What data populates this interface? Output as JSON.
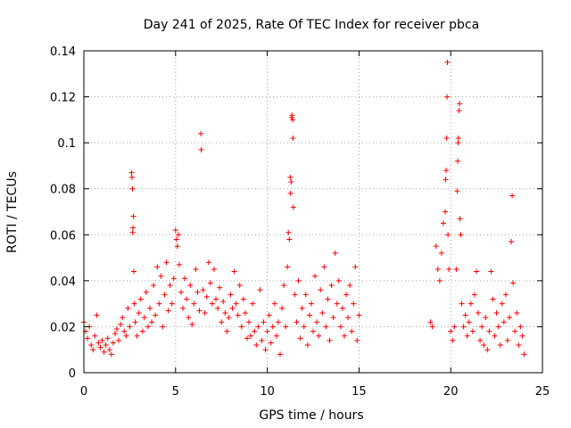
{
  "chart_data": {
    "type": "scatter",
    "title": "Day 241 of 2025, Rate Of TEC Index for receiver pbca",
    "xlabel": "GPS time / hours",
    "ylabel": "ROTI / TECUs",
    "xlim": [
      0,
      25
    ],
    "ylim": [
      0,
      0.14
    ],
    "xticks": [
      0,
      5,
      10,
      15,
      20,
      25
    ],
    "xtick_labels": [
      "0",
      "5",
      "10",
      "15",
      "20",
      "25"
    ],
    "yticks": [
      0,
      0.02,
      0.04,
      0.06,
      0.08,
      0.1,
      0.12,
      0.14
    ],
    "ytick_labels": [
      "0",
      "0.02",
      "0.04",
      "0.06",
      "0.08",
      "0.1",
      "0.12",
      "0.14"
    ],
    "grid": true,
    "marker": "plus",
    "color": "#ff0000",
    "series": [
      {
        "name": "ROTI",
        "points": [
          [
            0.0,
            0.022
          ],
          [
            0.1,
            0.018
          ],
          [
            0.2,
            0.015
          ],
          [
            0.3,
            0.02
          ],
          [
            0.4,
            0.012
          ],
          [
            0.5,
            0.01
          ],
          [
            0.6,
            0.016
          ],
          [
            0.7,
            0.025
          ],
          [
            0.8,
            0.013
          ],
          [
            0.9,
            0.011
          ],
          [
            1.0,
            0.014
          ],
          [
            1.1,
            0.009
          ],
          [
            1.2,
            0.012
          ],
          [
            1.3,
            0.015
          ],
          [
            1.4,
            0.01
          ],
          [
            1.5,
            0.008
          ],
          [
            1.6,
            0.013
          ],
          [
            1.7,
            0.017
          ],
          [
            1.8,
            0.019
          ],
          [
            1.9,
            0.014
          ],
          [
            2.0,
            0.021
          ],
          [
            2.1,
            0.024
          ],
          [
            2.2,
            0.018
          ],
          [
            2.3,
            0.016
          ],
          [
            2.4,
            0.028
          ],
          [
            2.5,
            0.02
          ],
          [
            2.6,
            0.087
          ],
          [
            2.62,
            0.085
          ],
          [
            2.65,
            0.08
          ],
          [
            2.7,
            0.068
          ],
          [
            2.68,
            0.063
          ],
          [
            2.66,
            0.061
          ],
          [
            2.72,
            0.044
          ],
          [
            2.75,
            0.03
          ],
          [
            2.8,
            0.022
          ],
          [
            2.9,
            0.016
          ],
          [
            3.0,
            0.026
          ],
          [
            3.1,
            0.032
          ],
          [
            3.2,
            0.018
          ],
          [
            3.3,
            0.024
          ],
          [
            3.4,
            0.035
          ],
          [
            3.5,
            0.02
          ],
          [
            3.6,
            0.028
          ],
          [
            3.7,
            0.022
          ],
          [
            3.8,
            0.038
          ],
          [
            3.9,
            0.025
          ],
          [
            4.0,
            0.046
          ],
          [
            4.1,
            0.03
          ],
          [
            4.2,
            0.042
          ],
          [
            4.3,
            0.02
          ],
          [
            4.4,
            0.034
          ],
          [
            4.5,
            0.048
          ],
          [
            4.6,
            0.027
          ],
          [
            4.7,
            0.038
          ],
          [
            4.8,
            0.03
          ],
          [
            4.9,
            0.041
          ],
          [
            5.0,
            0.062
          ],
          [
            5.05,
            0.058
          ],
          [
            5.1,
            0.055
          ],
          [
            5.15,
            0.06
          ],
          [
            5.2,
            0.047
          ],
          [
            5.3,
            0.035
          ],
          [
            5.4,
            0.028
          ],
          [
            5.5,
            0.041
          ],
          [
            5.6,
            0.032
          ],
          [
            5.7,
            0.024
          ],
          [
            5.8,
            0.038
          ],
          [
            5.9,
            0.021
          ],
          [
            6.0,
            0.03
          ],
          [
            6.1,
            0.045
          ],
          [
            6.2,
            0.035
          ],
          [
            6.3,
            0.027
          ],
          [
            6.38,
            0.104
          ],
          [
            6.4,
            0.097
          ],
          [
            6.5,
            0.036
          ],
          [
            6.6,
            0.026
          ],
          [
            6.7,
            0.033
          ],
          [
            6.8,
            0.048
          ],
          [
            6.9,
            0.039
          ],
          [
            7.0,
            0.03
          ],
          [
            7.1,
            0.045
          ],
          [
            7.2,
            0.032
          ],
          [
            7.3,
            0.028
          ],
          [
            7.4,
            0.037
          ],
          [
            7.5,
            0.022
          ],
          [
            7.6,
            0.031
          ],
          [
            7.7,
            0.026
          ],
          [
            7.8,
            0.018
          ],
          [
            7.9,
            0.024
          ],
          [
            8.0,
            0.034
          ],
          [
            8.1,
            0.028
          ],
          [
            8.2,
            0.044
          ],
          [
            8.3,
            0.03
          ],
          [
            8.4,
            0.025
          ],
          [
            8.5,
            0.038
          ],
          [
            8.6,
            0.02
          ],
          [
            8.7,
            0.032
          ],
          [
            8.8,
            0.026
          ],
          [
            8.9,
            0.015
          ],
          [
            9.0,
            0.022
          ],
          [
            9.1,
            0.016
          ],
          [
            9.2,
            0.03
          ],
          [
            9.3,
            0.018
          ],
          [
            9.4,
            0.012
          ],
          [
            9.5,
            0.02
          ],
          [
            9.6,
            0.036
          ],
          [
            9.7,
            0.014
          ],
          [
            9.8,
            0.022
          ],
          [
            9.9,
            0.01
          ],
          [
            10.0,
            0.018
          ],
          [
            10.1,
            0.025
          ],
          [
            10.2,
            0.013
          ],
          [
            10.3,
            0.02
          ],
          [
            10.4,
            0.03
          ],
          [
            10.5,
            0.016
          ],
          [
            10.6,
            0.022
          ],
          [
            10.7,
            0.008
          ],
          [
            10.8,
            0.028
          ],
          [
            10.9,
            0.038
          ],
          [
            11.0,
            0.02
          ],
          [
            11.1,
            0.046
          ],
          [
            11.15,
            0.061
          ],
          [
            11.2,
            0.058
          ],
          [
            11.25,
            0.085
          ],
          [
            11.27,
            0.078
          ],
          [
            11.3,
            0.083
          ],
          [
            11.33,
            0.111
          ],
          [
            11.35,
            0.112
          ],
          [
            11.38,
            0.11
          ],
          [
            11.4,
            0.102
          ],
          [
            11.42,
            0.072
          ],
          [
            11.5,
            0.034
          ],
          [
            11.6,
            0.022
          ],
          [
            11.7,
            0.04
          ],
          [
            11.8,
            0.015
          ],
          [
            11.9,
            0.028
          ],
          [
            12.0,
            0.02
          ],
          [
            12.1,
            0.034
          ],
          [
            12.2,
            0.012
          ],
          [
            12.3,
            0.025
          ],
          [
            12.4,
            0.03
          ],
          [
            12.5,
            0.018
          ],
          [
            12.6,
            0.042
          ],
          [
            12.7,
            0.022
          ],
          [
            12.8,
            0.016
          ],
          [
            12.9,
            0.036
          ],
          [
            13.0,
            0.026
          ],
          [
            13.1,
            0.046
          ],
          [
            13.2,
            0.02
          ],
          [
            13.3,
            0.032
          ],
          [
            13.4,
            0.014
          ],
          [
            13.5,
            0.038
          ],
          [
            13.6,
            0.024
          ],
          [
            13.7,
            0.052
          ],
          [
            13.8,
            0.03
          ],
          [
            13.9,
            0.04
          ],
          [
            14.0,
            0.02
          ],
          [
            14.1,
            0.028
          ],
          [
            14.2,
            0.016
          ],
          [
            14.3,
            0.034
          ],
          [
            14.4,
            0.024
          ],
          [
            14.5,
            0.038
          ],
          [
            14.6,
            0.018
          ],
          [
            14.7,
            0.03
          ],
          [
            14.8,
            0.046
          ],
          [
            14.9,
            0.014
          ],
          [
            15.0,
            0.025
          ],
          [
            18.9,
            0.022
          ],
          [
            19.0,
            0.02
          ],
          [
            19.2,
            0.055
          ],
          [
            19.3,
            0.045
          ],
          [
            19.4,
            0.04
          ],
          [
            19.5,
            0.052
          ],
          [
            19.6,
            0.065
          ],
          [
            19.7,
            0.07
          ],
          [
            19.72,
            0.084
          ],
          [
            19.75,
            0.088
          ],
          [
            19.78,
            0.102
          ],
          [
            19.8,
            0.12
          ],
          [
            19.82,
            0.135
          ],
          [
            19.85,
            0.06
          ],
          [
            19.9,
            0.045
          ],
          [
            20.0,
            0.018
          ],
          [
            20.1,
            0.014
          ],
          [
            20.2,
            0.02
          ],
          [
            20.3,
            0.045
          ],
          [
            20.35,
            0.079
          ],
          [
            20.38,
            0.092
          ],
          [
            20.4,
            0.1
          ],
          [
            20.42,
            0.102
          ],
          [
            20.45,
            0.114
          ],
          [
            20.48,
            0.117
          ],
          [
            20.5,
            0.067
          ],
          [
            20.55,
            0.06
          ],
          [
            20.6,
            0.03
          ],
          [
            20.7,
            0.02
          ],
          [
            20.8,
            0.025
          ],
          [
            20.9,
            0.016
          ],
          [
            21.0,
            0.022
          ],
          [
            21.1,
            0.03
          ],
          [
            21.2,
            0.018
          ],
          [
            21.3,
            0.034
          ],
          [
            21.4,
            0.044
          ],
          [
            21.5,
            0.026
          ],
          [
            21.6,
            0.014
          ],
          [
            21.7,
            0.02
          ],
          [
            21.8,
            0.012
          ],
          [
            21.9,
            0.024
          ],
          [
            22.0,
            0.01
          ],
          [
            22.1,
            0.018
          ],
          [
            22.2,
            0.044
          ],
          [
            22.3,
            0.032
          ],
          [
            22.4,
            0.016
          ],
          [
            22.5,
            0.026
          ],
          [
            22.6,
            0.02
          ],
          [
            22.7,
            0.012
          ],
          [
            22.8,
            0.03
          ],
          [
            22.9,
            0.022
          ],
          [
            23.0,
            0.034
          ],
          [
            23.1,
            0.014
          ],
          [
            23.2,
            0.024
          ],
          [
            23.3,
            0.057
          ],
          [
            23.35,
            0.077
          ],
          [
            23.4,
            0.039
          ],
          [
            23.5,
            0.018
          ],
          [
            23.6,
            0.026
          ],
          [
            23.7,
            0.012
          ],
          [
            23.8,
            0.02
          ],
          [
            23.9,
            0.016
          ],
          [
            24.0,
            0.008
          ]
        ]
      }
    ]
  }
}
